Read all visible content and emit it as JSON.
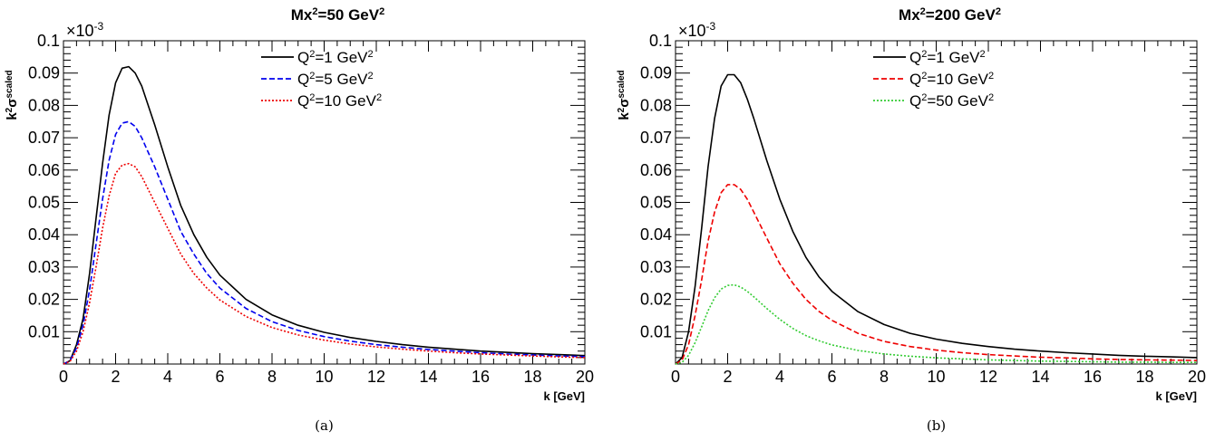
{
  "chart_data": [
    {
      "type": "line",
      "caption": "(a)",
      "title": {
        "base": "Mx",
        "sup1": "2",
        "mid": "=50 GeV",
        "sup2": "2"
      },
      "xlabel": "k [GeV]",
      "ylabel": {
        "k": "k",
        "k_sup": "2",
        "sigma": "σ",
        "sigma_sup": "scaled"
      },
      "ymultiplier": {
        "text": "×10",
        "exp": "-3"
      },
      "xlim": [
        0,
        20
      ],
      "ylim": [
        0,
        0.1
      ],
      "xticks": [
        "0",
        "2",
        "4",
        "6",
        "8",
        "10",
        "12",
        "14",
        "16",
        "18",
        "20"
      ],
      "yticks": [
        "0.01",
        "0.02",
        "0.03",
        "0.04",
        "0.05",
        "0.06",
        "0.07",
        "0.08",
        "0.09",
        "0.1"
      ],
      "legend_position": "top-right",
      "x": [
        0,
        0.25,
        0.5,
        0.75,
        1,
        1.25,
        1.5,
        1.75,
        2,
        2.25,
        2.5,
        2.75,
        3,
        3.5,
        4,
        4.5,
        5,
        5.5,
        6,
        7,
        8,
        9,
        10,
        11,
        12,
        13,
        14,
        15,
        16,
        17,
        18,
        19,
        20
      ],
      "series": [
        {
          "name": {
            "base": "Q",
            "sup1": "2",
            "mid": "=1 GeV",
            "sup2": "2"
          },
          "color": "#000000",
          "dash": "",
          "values": [
            0,
            0.001,
            0.006,
            0.014,
            0.028,
            0.045,
            0.062,
            0.077,
            0.087,
            0.0915,
            0.092,
            0.09,
            0.086,
            0.074,
            0.061,
            0.049,
            0.04,
            0.033,
            0.0275,
            0.02,
            0.0152,
            0.012,
            0.0098,
            0.0082,
            0.007,
            0.006,
            0.0052,
            0.0046,
            0.004,
            0.0036,
            0.0032,
            0.0029,
            0.0026
          ]
        },
        {
          "name": {
            "base": "Q",
            "sup1": "2",
            "mid": "=5 GeV",
            "sup2": "2"
          },
          "color": "#0000ee",
          "dash": "6,3",
          "values": [
            0,
            0.001,
            0.005,
            0.012,
            0.023,
            0.037,
            0.051,
            0.063,
            0.071,
            0.0745,
            0.075,
            0.0735,
            0.07,
            0.061,
            0.051,
            0.041,
            0.034,
            0.028,
            0.0235,
            0.0172,
            0.0131,
            0.0104,
            0.0085,
            0.0071,
            0.006,
            0.0052,
            0.0045,
            0.004,
            0.0035,
            0.0031,
            0.0028,
            0.0025,
            0.0023
          ]
        },
        {
          "name": {
            "base": "Q",
            "sup1": "2",
            "mid": "=10 GeV",
            "sup2": "2"
          },
          "color": "#ee0000",
          "dash": "2,2",
          "values": [
            0,
            0.0008,
            0.004,
            0.01,
            0.019,
            0.03,
            0.042,
            0.052,
            0.059,
            0.0615,
            0.062,
            0.061,
            0.058,
            0.05,
            0.042,
            0.034,
            0.028,
            0.0235,
            0.0198,
            0.0147,
            0.0113,
            0.009,
            0.0074,
            0.0062,
            0.0053,
            0.0046,
            0.004,
            0.0035,
            0.0031,
            0.0028,
            0.0025,
            0.0022,
            0.002
          ]
        }
      ]
    },
    {
      "type": "line",
      "caption": "(b)",
      "title": {
        "base": "Mx",
        "sup1": "2",
        "mid": "=200 GeV",
        "sup2": "2"
      },
      "xlabel": "k [GeV]",
      "ylabel": {
        "k": "k",
        "k_sup": "2",
        "sigma": "σ",
        "sigma_sup": "scaled"
      },
      "ymultiplier": {
        "text": "×10",
        "exp": "-3"
      },
      "xlim": [
        0,
        20
      ],
      "ylim": [
        0,
        0.1
      ],
      "xticks": [
        "0",
        "2",
        "4",
        "6",
        "8",
        "10",
        "12",
        "14",
        "16",
        "18",
        "20"
      ],
      "yticks": [
        "0.01",
        "0.02",
        "0.03",
        "0.04",
        "0.05",
        "0.06",
        "0.07",
        "0.08",
        "0.09",
        "0.1"
      ],
      "legend_position": "top-right",
      "x": [
        0,
        0.25,
        0.5,
        0.75,
        1,
        1.25,
        1.5,
        1.75,
        2,
        2.25,
        2.5,
        2.75,
        3,
        3.5,
        4,
        4.5,
        5,
        5.5,
        6,
        7,
        8,
        9,
        10,
        11,
        12,
        13,
        14,
        15,
        16,
        17,
        18,
        19,
        20
      ],
      "series": [
        {
          "name": {
            "base": "Q",
            "sup1": "2",
            "mid": "=1 GeV",
            "sup2": "2"
          },
          "color": "#000000",
          "dash": "",
          "values": [
            0,
            0.002,
            0.01,
            0.024,
            0.042,
            0.061,
            0.076,
            0.086,
            0.0895,
            0.0895,
            0.087,
            0.082,
            0.076,
            0.063,
            0.051,
            0.041,
            0.033,
            0.027,
            0.0225,
            0.0162,
            0.0122,
            0.0095,
            0.0077,
            0.0064,
            0.0054,
            0.0046,
            0.004,
            0.0035,
            0.0031,
            0.0027,
            0.0024,
            0.0022,
            0.002
          ]
        },
        {
          "name": {
            "base": "Q",
            "sup1": "2",
            "mid": "=10 GeV",
            "sup2": "2"
          },
          "color": "#ee0000",
          "dash": "6,3",
          "values": [
            0,
            0.0012,
            0.006,
            0.015,
            0.026,
            0.038,
            0.047,
            0.053,
            0.0555,
            0.0555,
            0.054,
            0.051,
            0.047,
            0.039,
            0.031,
            0.025,
            0.02,
            0.0163,
            0.0135,
            0.0095,
            0.007,
            0.0054,
            0.0043,
            0.0035,
            0.0029,
            0.0025,
            0.0021,
            0.0019,
            0.0016,
            0.0014,
            0.0013,
            0.0012,
            0.0011
          ]
        },
        {
          "name": {
            "base": "Q",
            "sup1": "2",
            "mid": "=50 GeV",
            "sup2": "2"
          },
          "color": "#33cc33",
          "dash": "2,2",
          "values": [
            0,
            0.0005,
            0.0027,
            0.0066,
            0.0115,
            0.0165,
            0.0205,
            0.0232,
            0.0243,
            0.0245,
            0.0238,
            0.0225,
            0.0208,
            0.0172,
            0.0138,
            0.011,
            0.0088,
            0.0072,
            0.0059,
            0.0042,
            0.0031,
            0.0024,
            0.0019,
            0.0016,
            0.0013,
            0.0011,
            0.0009,
            0.0008,
            0.0007,
            0.0006,
            0.0006,
            0.0005,
            0.0005
          ]
        }
      ]
    }
  ]
}
